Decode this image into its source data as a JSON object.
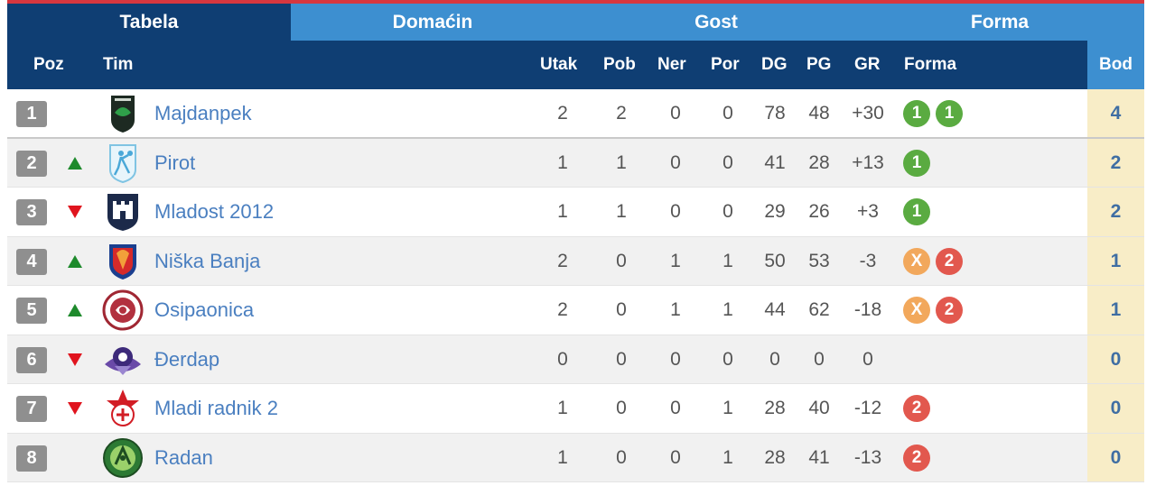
{
  "tabs": [
    "Tabela",
    "Domaćin",
    "Gost",
    "Forma"
  ],
  "active_tab": "Tabela",
  "columns": {
    "poz": "Poz",
    "tim": "Tim",
    "utak": "Utak",
    "pob": "Pob",
    "ner": "Ner",
    "por": "Por",
    "dg": "DG",
    "pg": "PG",
    "gr": "GR",
    "forma": "Forma",
    "bod": "Bod"
  },
  "form_colors": {
    "W": "#5aab41",
    "D": "#f2a85c",
    "L": "#e2584e"
  },
  "rows": [
    {
      "pos": "1",
      "trend": "",
      "team": "Majdanpek",
      "utak": "2",
      "pob": "2",
      "ner": "0",
      "por": "0",
      "dg": "78",
      "pg": "48",
      "gr": "+30",
      "form": [
        {
          "label": "1",
          "type": "W"
        },
        {
          "label": "1",
          "type": "W"
        }
      ],
      "bod": "4"
    },
    {
      "pos": "2",
      "trend": "up",
      "team": "Pirot",
      "utak": "1",
      "pob": "1",
      "ner": "0",
      "por": "0",
      "dg": "41",
      "pg": "28",
      "gr": "+13",
      "form": [
        {
          "label": "1",
          "type": "W"
        }
      ],
      "bod": "2"
    },
    {
      "pos": "3",
      "trend": "down",
      "team": "Mladost 2012",
      "utak": "1",
      "pob": "1",
      "ner": "0",
      "por": "0",
      "dg": "29",
      "pg": "26",
      "gr": "+3",
      "form": [
        {
          "label": "1",
          "type": "W"
        }
      ],
      "bod": "2"
    },
    {
      "pos": "4",
      "trend": "up",
      "team": "Niška Banja",
      "utak": "2",
      "pob": "0",
      "ner": "1",
      "por": "1",
      "dg": "50",
      "pg": "53",
      "gr": "-3",
      "form": [
        {
          "label": "X",
          "type": "D"
        },
        {
          "label": "2",
          "type": "L"
        }
      ],
      "bod": "1"
    },
    {
      "pos": "5",
      "trend": "up",
      "team": "Osipaonica",
      "utak": "2",
      "pob": "0",
      "ner": "1",
      "por": "1",
      "dg": "44",
      "pg": "62",
      "gr": "-18",
      "form": [
        {
          "label": "X",
          "type": "D"
        },
        {
          "label": "2",
          "type": "L"
        }
      ],
      "bod": "1"
    },
    {
      "pos": "6",
      "trend": "down",
      "team": "Đerdap",
      "utak": "0",
      "pob": "0",
      "ner": "0",
      "por": "0",
      "dg": "0",
      "pg": "0",
      "gr": "0",
      "form": [],
      "bod": "0"
    },
    {
      "pos": "7",
      "trend": "down",
      "team": "Mladi radnik 2",
      "utak": "1",
      "pob": "0",
      "ner": "0",
      "por": "1",
      "dg": "28",
      "pg": "40",
      "gr": "-12",
      "form": [
        {
          "label": "2",
          "type": "L"
        }
      ],
      "bod": "0"
    },
    {
      "pos": "8",
      "trend": "",
      "team": "Radan",
      "utak": "1",
      "pob": "0",
      "ner": "0",
      "por": "1",
      "dg": "28",
      "pg": "41",
      "gr": "-13",
      "form": [
        {
          "label": "2",
          "type": "L"
        }
      ],
      "bod": "0"
    }
  ],
  "team_logos": [
    "majdanpek-crest-icon",
    "pirot-handball-crest-icon",
    "mladost-2012-crest-icon",
    "niska-banja-shield-icon",
    "osipaonica-round-crest-icon",
    "djerdap-crest-icon",
    "mladi-radnik-star-crest-icon",
    "radan-green-round-crest-icon"
  ]
}
